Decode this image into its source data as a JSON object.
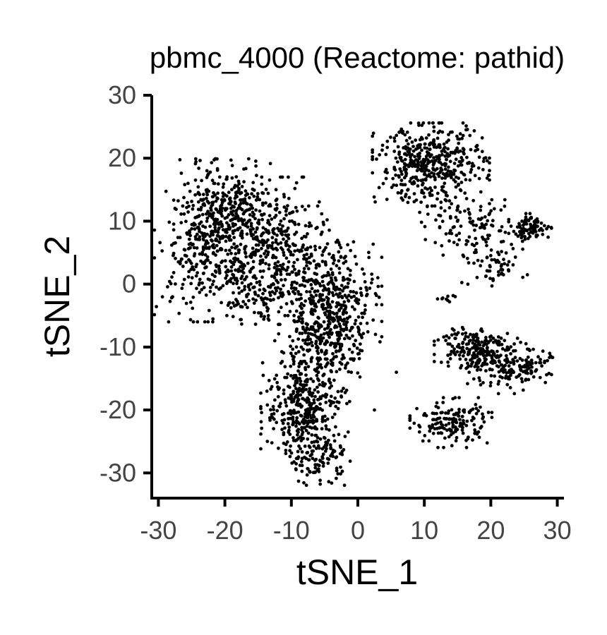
{
  "chart_data": {
    "type": "scatter",
    "title": "pbmc_4000 (Reactome: pathid)",
    "xlabel": "tSNE_1",
    "ylabel": "tSNE_2",
    "xlim": [
      -31,
      31
    ],
    "ylim": [
      -34,
      30
    ],
    "x_ticks": [
      -30,
      -20,
      -10,
      0,
      10,
      20,
      30
    ],
    "x_tick_labels": [
      "-30",
      "-20",
      "-10",
      "0",
      "10",
      "20",
      "30"
    ],
    "y_ticks": [
      -30,
      -20,
      -10,
      0,
      10,
      20,
      30
    ],
    "y_tick_labels": [
      "-30",
      "-20",
      "-10",
      "0",
      "10",
      "20",
      "30"
    ],
    "grid": false,
    "legend": "none",
    "point_color": "#000000",
    "clusters": [
      {
        "cx": -20,
        "cy": 10,
        "sx": 3.5,
        "sy": 4.5,
        "n": 420
      },
      {
        "cx": -24,
        "cy": 5,
        "sx": 3.0,
        "sy": 5.0,
        "n": 180
      },
      {
        "cx": -12,
        "cy": 6,
        "sx": 3.5,
        "sy": 5.0,
        "n": 300
      },
      {
        "cx": -14,
        "cy": -2,
        "sx": 4.0,
        "sy": 2.0,
        "n": 150
      },
      {
        "cx": -3,
        "cy": -2,
        "sx": 3.0,
        "sy": 4.5,
        "n": 320
      },
      {
        "cx": -6,
        "cy": -10,
        "sx": 3.0,
        "sy": 4.0,
        "n": 280
      },
      {
        "cx": -8,
        "cy": -20,
        "sx": 3.0,
        "sy": 3.5,
        "n": 330
      },
      {
        "cx": -6,
        "cy": -28,
        "sx": 2.2,
        "sy": 1.8,
        "n": 100
      },
      {
        "cx": 11,
        "cy": 19,
        "sx": 4.0,
        "sy": 3.0,
        "n": 450
      },
      {
        "cx": 17,
        "cy": 9,
        "sx": 3.5,
        "sy": 2.0,
        "n": 110
      },
      {
        "cx": 26,
        "cy": 9,
        "sx": 1.5,
        "sy": 1.0,
        "n": 80
      },
      {
        "cx": 20,
        "cy": 3,
        "sx": 2.5,
        "sy": 1.5,
        "n": 60
      },
      {
        "cx": 17,
        "cy": -10,
        "sx": 2.5,
        "sy": 1.8,
        "n": 170
      },
      {
        "cx": 22,
        "cy": -13,
        "sx": 2.5,
        "sy": 2.0,
        "n": 130
      },
      {
        "cx": 26,
        "cy": -13,
        "sx": 1.5,
        "sy": 1.2,
        "n": 60
      },
      {
        "cx": 14,
        "cy": -22,
        "sx": 2.8,
        "sy": 1.8,
        "n": 160
      },
      {
        "cx": 13,
        "cy": -2.5,
        "sx": 0.9,
        "sy": 0.4,
        "n": 9
      }
    ],
    "isolated_points": [
      [
        5.8,
        -14
      ],
      [
        2.5,
        -20
      ],
      [
        3.0,
        1.0
      ]
    ]
  }
}
